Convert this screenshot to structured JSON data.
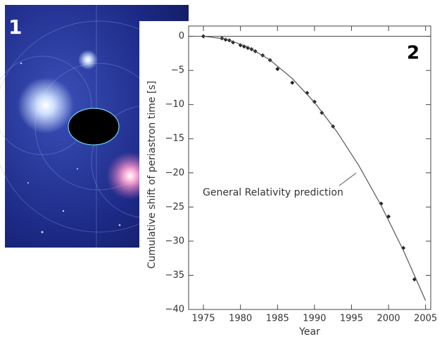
{
  "panels": [
    {
      "label": "1"
    }
  ],
  "chart_data": {
    "type": "scatter",
    "panel_label": "2",
    "xlabel": "Year",
    "ylabel": "Cumulative shift of periastron time [s]",
    "annotation": "General Relativity prediction",
    "xlim": [
      1973,
      2005.7
    ],
    "ylim": [
      -40,
      1.5
    ],
    "xticks": [
      1975,
      1980,
      1985,
      1990,
      1995,
      2000,
      2005
    ],
    "yticks": [
      0,
      {
        "value": -5,
        "label": "−5"
      },
      {
        "value": -10,
        "label": "−10"
      },
      {
        "value": -15,
        "label": "−15"
      },
      {
        "value": -20,
        "label": "−20"
      },
      {
        "value": -25,
        "label": "−25"
      },
      {
        "value": -30,
        "label": "−30"
      },
      {
        "value": -35,
        "label": "−35"
      },
      {
        "value": -40,
        "label": "−40"
      }
    ],
    "series": [
      {
        "style": "points",
        "color": "#222222",
        "x": [
          1975,
          1977.5,
          1978,
          1978.5,
          1979,
          1980,
          1980.5,
          1981,
          1981.5,
          1982,
          1983,
          1984,
          1985,
          1987,
          1989,
          1990,
          1991,
          1992.5,
          1999,
          2000,
          2002,
          2003.5
        ],
        "values": [
          0,
          -0.3,
          -0.5,
          -0.6,
          -0.9,
          -1.3,
          -1.5,
          -1.7,
          -1.9,
          -2.2,
          -2.8,
          -3.5,
          -4.8,
          -6.8,
          -8.3,
          -9.6,
          -11.2,
          -13.2,
          -24.5,
          -26.4,
          -31,
          -35.6
        ]
      },
      {
        "style": "line",
        "color": "#555555",
        "x": [
          1975,
          1978,
          1981,
          1984,
          1987,
          1990,
          1993,
          1996,
          1999,
          2002,
          2005
        ],
        "values": [
          0,
          -0.39,
          -1.55,
          -3.48,
          -6.19,
          -9.68,
          -13.93,
          -18.96,
          -24.77,
          -31.35,
          -38.7
        ]
      }
    ]
  }
}
